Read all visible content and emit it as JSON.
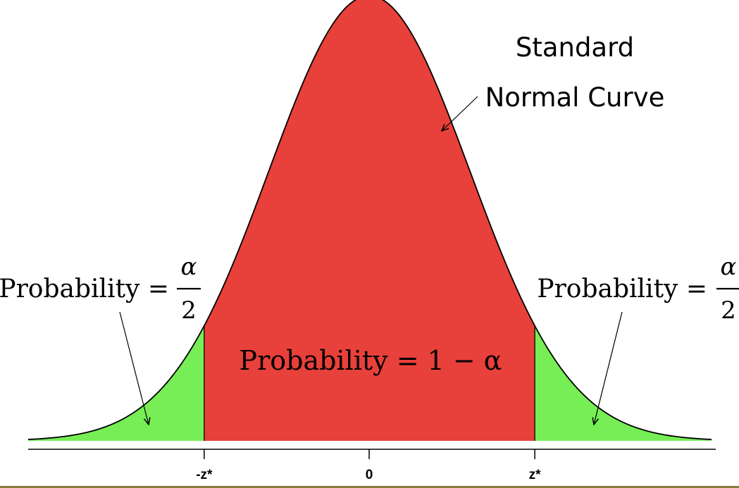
{
  "curve_label": {
    "line1": "Standard",
    "line2": "Normal Curve"
  },
  "left_tail": {
    "prefix": "Probability =",
    "numerator": "α",
    "denominator": "2"
  },
  "right_tail": {
    "prefix": "Probability =",
    "numerator": "α",
    "denominator": "2"
  },
  "center": {
    "label": "Probability = 1 − α"
  },
  "axis": {
    "ticks": [
      "-z*",
      "0",
      "z*"
    ]
  },
  "chart_data": {
    "type": "area",
    "distribution": "standard normal",
    "xlim": [
      -3.4,
      3.4
    ],
    "critical_value": 1.645,
    "regions": [
      {
        "name": "left tail",
        "range": [
          "-inf",
          "-z*"
        ],
        "color": "#77ee55"
      },
      {
        "name": "center",
        "range": [
          "-z*",
          "z*"
        ],
        "color": "#e8403a"
      },
      {
        "name": "right tail",
        "range": [
          "z*",
          "inf"
        ],
        "color": "#77ee55"
      }
    ],
    "tick_labels": [
      "-z*",
      "0",
      "z*"
    ]
  },
  "colors": {
    "center_fill": "#e8403a",
    "tail_fill": "#77ee55",
    "curve_stroke": "#000000",
    "frame_border": "#8a7c3c"
  }
}
